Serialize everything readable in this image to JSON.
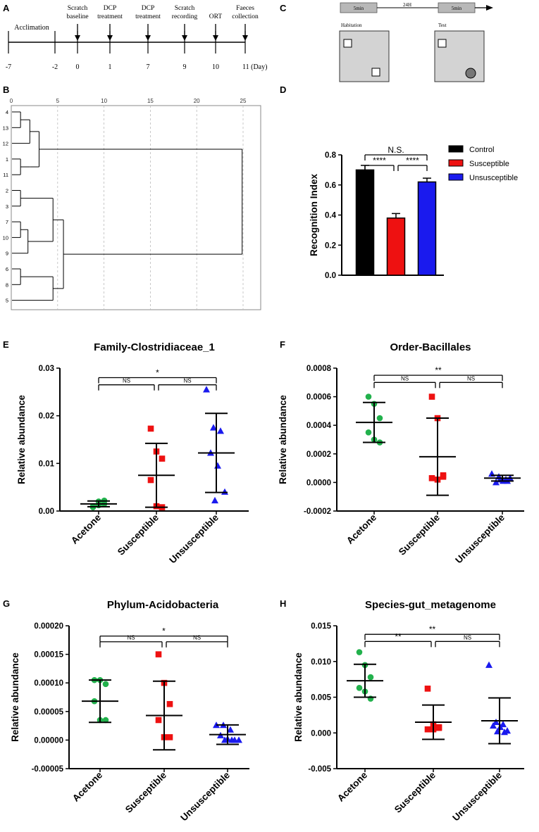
{
  "panels": {
    "A": {
      "letter": "A",
      "acclimation": "Acclimation",
      "axis_ticks": [
        "-7",
        "-2",
        "0",
        "1",
        "7",
        "9",
        "10",
        "11 (Day)"
      ],
      "events": [
        {
          "tick": "0",
          "lines": [
            "Scratch",
            "baseline"
          ]
        },
        {
          "tick": "1",
          "lines": [
            "DCP",
            "treatment"
          ]
        },
        {
          "tick": "7",
          "lines": [
            "DCP",
            "treatment"
          ]
        },
        {
          "tick": "9",
          "lines": [
            "Scratch",
            "recording"
          ]
        },
        {
          "tick": "10",
          "lines": [
            "ORT"
          ]
        },
        {
          "tick": "11",
          "lines": [
            "Faeces",
            "collection"
          ]
        }
      ]
    },
    "B": {
      "letter": "B",
      "scale_ticks": [
        "0",
        "5",
        "10",
        "15",
        "20",
        "25"
      ],
      "leaves": [
        "4",
        "13",
        "12",
        "1",
        "11",
        "2",
        "3",
        "7",
        "10",
        "9",
        "6",
        "8",
        "5"
      ]
    },
    "C": {
      "letter": "C",
      "time1": "5min",
      "gap": "24H",
      "time2": "5min",
      "phase1": "Habitation",
      "phase2": "Test"
    }
  },
  "colors": {
    "green": "#22b14c",
    "red": "#ee1111",
    "blue": "#1a1aee",
    "black": "#000000"
  },
  "chart_data": [
    {
      "id": "D",
      "letter": "D",
      "type": "bar",
      "title": "",
      "ylabel": "Recognition Index",
      "ylim": [
        0,
        0.8
      ],
      "yticks": [
        "0.0",
        "0.2",
        "0.4",
        "0.6",
        "0.8"
      ],
      "categories": [
        "Control",
        "Susceptible",
        "Unsusceptible"
      ],
      "values": [
        0.7,
        0.38,
        0.62
      ],
      "errors": [
        0.03,
        0.03,
        0.025
      ],
      "legend": [
        "Control",
        "Susceptible",
        "Unsusceptible"
      ],
      "sig": [
        {
          "from": 0,
          "to": 1,
          "label": "****",
          "level": 0.73
        },
        {
          "from": 1,
          "to": 2,
          "label": "****",
          "level": 0.73
        },
        {
          "from": 0,
          "to": 2,
          "label": "N.S.",
          "level": 0.8
        }
      ]
    },
    {
      "id": "E",
      "letter": "E",
      "type": "scatter",
      "title": "Family-Clostridiaceae_1",
      "ylabel": "Relative abundance",
      "ylim": [
        0,
        0.03
      ],
      "yticks": [
        "0.00",
        "0.01",
        "0.02",
        "0.03"
      ],
      "categories": [
        "Acetone",
        "Susceptible",
        "Unsusceptible"
      ],
      "series": [
        {
          "name": "Acetone",
          "values": [
            0.0008,
            0.002,
            0.0015,
            0.001,
            0.0012,
            0.0022
          ],
          "mean": 0.0015,
          "sd": 0.0006
        },
        {
          "name": "Susceptible",
          "values": [
            0.0173,
            0.0125,
            0.011,
            0.0065,
            0.001,
            0.0008
          ],
          "mean": 0.0075,
          "sd": 0.0067
        },
        {
          "name": "Unsusceptible",
          "values": [
            0.0255,
            0.0175,
            0.0168,
            0.0122,
            0.0095,
            0.004,
            0.0022
          ],
          "mean": 0.0122,
          "sd": 0.0083
        }
      ],
      "sig": [
        {
          "from": 0,
          "to": 1,
          "label": "NS",
          "level": 0.0265
        },
        {
          "from": 1,
          "to": 2,
          "label": "NS",
          "level": 0.0265
        },
        {
          "from": 0,
          "to": 2,
          "label": "*",
          "level": 0.028
        }
      ]
    },
    {
      "id": "F",
      "letter": "F",
      "type": "scatter",
      "title": "Order-Bacillales",
      "ylabel": "Relative abundance",
      "ylim": [
        -0.0002,
        0.0008
      ],
      "yticks": [
        "-0.0002",
        "0.0000",
        "0.0002",
        "0.0004",
        "0.0006",
        "0.0008"
      ],
      "categories": [
        "Acetone",
        "Susceptible",
        "Unsusceptible"
      ],
      "series": [
        {
          "name": "Acetone",
          "values": [
            0.0006,
            0.00055,
            0.00045,
            0.00035,
            0.0003,
            0.00028
          ],
          "mean": 0.00042,
          "sd": 0.00014
        },
        {
          "name": "Susceptible",
          "values": [
            0.0006,
            0.00045,
            5e-05,
            3e-05,
            2e-05,
            4e-05
          ],
          "mean": 0.00018,
          "sd": 0.00027
        },
        {
          "name": "Unsusceptible",
          "values": [
            6e-05,
            4e-05,
            2e-05,
            0.0,
            1e-05,
            3e-05,
            2e-05,
            1e-05
          ],
          "mean": 3e-05,
          "sd": 2e-05
        }
      ],
      "sig": [
        {
          "from": 0,
          "to": 1,
          "label": "NS",
          "level": 0.0007
        },
        {
          "from": 1,
          "to": 2,
          "label": "NS",
          "level": 0.0007
        },
        {
          "from": 0,
          "to": 2,
          "label": "**",
          "level": 0.00075
        }
      ]
    },
    {
      "id": "G",
      "letter": "G",
      "type": "scatter",
      "title": "Phylum-Acidobacteria",
      "ylabel": "Relative abundance",
      "ylim": [
        -5e-05,
        0.0002
      ],
      "yticks": [
        "-0.00005",
        "0.00000",
        "0.00005",
        "0.00010",
        "0.00015",
        "0.00020"
      ],
      "categories": [
        "Acetone",
        "Susceptible",
        "Unsusceptible"
      ],
      "series": [
        {
          "name": "Acetone",
          "values": [
            0.000105,
            0.000105,
            9.8e-05,
            6.8e-05,
            3.5e-05,
            3.5e-05
          ],
          "mean": 6.8e-05,
          "sd": 3.7e-05
        },
        {
          "name": "Susceptible",
          "values": [
            0.00015,
            0.0001,
            6.3e-05,
            3.5e-05,
            5e-06,
            5e-06
          ],
          "mean": 4.3e-05,
          "sd": 6e-05
        },
        {
          "name": "Unsusceptible",
          "values": [
            2.6e-05,
            2.6e-05,
            1.8e-05,
            8e-06,
            2e-06,
            0.0,
            0.0,
            0.0,
            0.0
          ],
          "mean": 9.5e-06,
          "sd": 1.7e-05
        }
      ],
      "sig": [
        {
          "from": 0,
          "to": 1,
          "label": "NS",
          "level": 0.000172
        },
        {
          "from": 1,
          "to": 2,
          "label": "NS",
          "level": 0.000172
        },
        {
          "from": 0,
          "to": 2,
          "label": "*",
          "level": 0.000182
        }
      ]
    },
    {
      "id": "H",
      "letter": "H",
      "type": "scatter",
      "title": "Species-gut_metagenome",
      "ylabel": "Relative abundance",
      "ylim": [
        -0.005,
        0.015
      ],
      "yticks": [
        "-0.005",
        "0.000",
        "0.005",
        "0.010",
        "0.015"
      ],
      "categories": [
        "Acetone",
        "Susceptible",
        "Unsusceptible"
      ],
      "series": [
        {
          "name": "Acetone",
          "values": [
            0.0113,
            0.0095,
            0.0078,
            0.0063,
            0.0058,
            0.0048
          ],
          "mean": 0.0073,
          "sd": 0.0023
        },
        {
          "name": "Susceptible",
          "values": [
            0.0062,
            0.0012,
            0.0008,
            0.0005,
            0.0005,
            0.0007
          ],
          "mean": 0.0015,
          "sd": 0.0024
        },
        {
          "name": "Unsusceptible",
          "values": [
            0.0095,
            0.0015,
            0.0012,
            0.001,
            0.0008,
            0.0003,
            0.0002,
            0.0001
          ],
          "mean": 0.0017,
          "sd": 0.0032
        }
      ],
      "sig": [
        {
          "from": 0,
          "to": 1,
          "label": "**",
          "level": 0.0128
        },
        {
          "from": 1,
          "to": 2,
          "label": "NS",
          "level": 0.0128
        },
        {
          "from": 0,
          "to": 2,
          "label": "**",
          "level": 0.0138
        }
      ]
    }
  ]
}
